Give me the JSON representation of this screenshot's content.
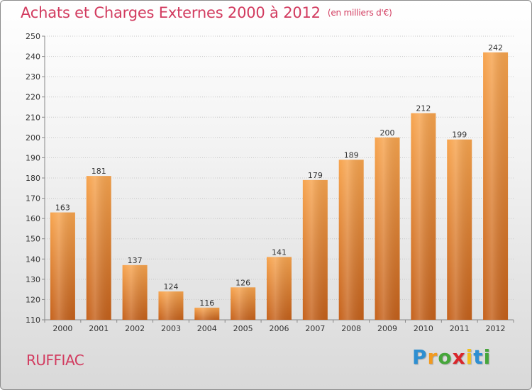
{
  "chart_data": {
    "type": "bar",
    "title": "Achats et Charges Externes 2000 à 2012",
    "subtitle": "(en milliers d'€)",
    "categories": [
      "2000",
      "2001",
      "2002",
      "2003",
      "2004",
      "2005",
      "2006",
      "2007",
      "2008",
      "2009",
      "2010",
      "2011",
      "2012"
    ],
    "values": [
      163,
      181,
      137,
      124,
      116,
      126,
      141,
      179,
      189,
      200,
      212,
      199,
      242
    ],
    "ylim": [
      110,
      250
    ],
    "yticks": [
      110,
      120,
      130,
      140,
      150,
      160,
      170,
      180,
      190,
      200,
      210,
      220,
      230,
      240,
      250
    ],
    "grid": true,
    "colors": {
      "bar_top": "#f7a44e",
      "bar_bottom": "#c5611b",
      "title": "#d23b5f"
    }
  },
  "location": "RUFFIAC",
  "logo": {
    "letters": [
      "P",
      "r",
      "o",
      "x",
      "i",
      "t",
      "i"
    ],
    "colors": [
      "#2e8fd1",
      "#f29a1f",
      "#46a63b",
      "#d9262b",
      "#f2c01d",
      "#2e8fd1",
      "#46a63b"
    ]
  }
}
